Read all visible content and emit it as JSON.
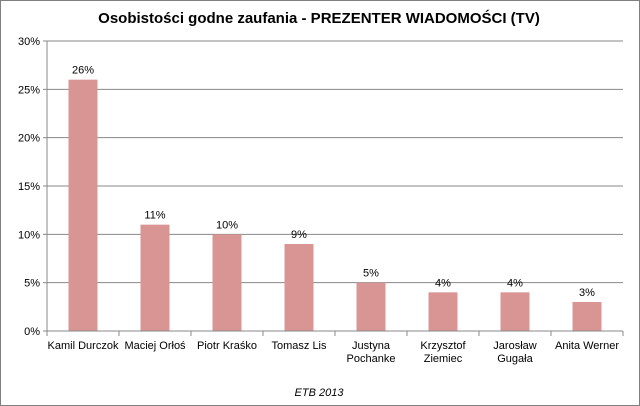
{
  "chart_data": {
    "type": "bar",
    "title": "Osobistości godne zaufania - PREZENTER WIADOMOŚCI (TV)",
    "xlabel": "",
    "ylabel": "",
    "categories": [
      [
        "Kamil Durczok"
      ],
      [
        "Maciej Orłoś"
      ],
      [
        "Piotr Kraśko"
      ],
      [
        "Tomasz Lis"
      ],
      [
        "Justyna",
        "Pochanke"
      ],
      [
        "Krzysztof",
        "Ziemiec"
      ],
      [
        "Jarosław",
        "Gugała"
      ],
      [
        "Anita Werner"
      ]
    ],
    "values": [
      26,
      11,
      10,
      9,
      5,
      4,
      4,
      3
    ],
    "data_labels": [
      "26%",
      "11%",
      "10%",
      "9%",
      "5%",
      "4%",
      "4%",
      "3%"
    ],
    "y_ticks": [
      "0%",
      "5%",
      "10%",
      "15%",
      "20%",
      "25%",
      "30%"
    ],
    "ylim": [
      0,
      30
    ],
    "grid": true,
    "legend": "none",
    "bar_color": "#d99594",
    "source_note": "ETB 2013"
  }
}
